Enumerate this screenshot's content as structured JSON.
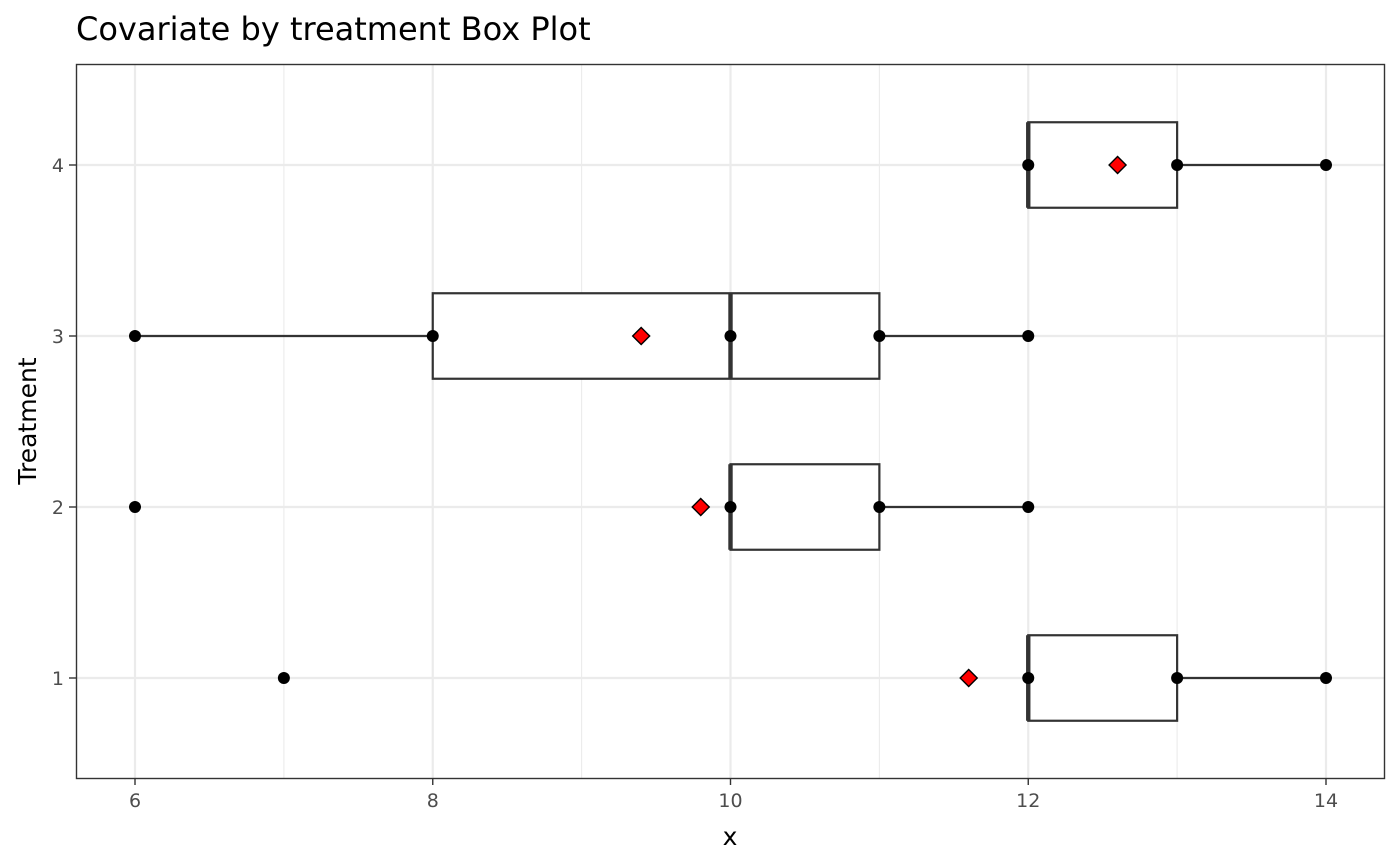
{
  "chart_data": {
    "type": "boxplot",
    "title": "Covariate by treatment Box Plot",
    "xlabel": "x",
    "ylabel": "Treatment",
    "xlim": [
      5.6,
      14.4
    ],
    "x_ticks": [
      6,
      8,
      10,
      12,
      14
    ],
    "x_minor": [
      7,
      9,
      11,
      13
    ],
    "categories": [
      "1",
      "2",
      "3",
      "4"
    ],
    "grid": true,
    "mean_color": "#ff0000",
    "series": [
      {
        "category": "1",
        "points": [
          7,
          12,
          13,
          14
        ],
        "q1": 12,
        "median": 12,
        "q3": 13,
        "whisker_low": 12,
        "whisker_high": 14,
        "mean": 11.6
      },
      {
        "category": "2",
        "points": [
          6,
          10,
          11,
          12
        ],
        "q1": 10,
        "median": 10,
        "q3": 11,
        "whisker_low": 10,
        "whisker_high": 12,
        "mean": 9.8
      },
      {
        "category": "3",
        "points": [
          6,
          8,
          10,
          11,
          12
        ],
        "q1": 8,
        "median": 10,
        "q3": 11,
        "whisker_low": 6,
        "whisker_high": 12,
        "mean": 9.4
      },
      {
        "category": "4",
        "points": [
          12,
          13,
          14
        ],
        "q1": 12,
        "median": 12,
        "q3": 13,
        "whisker_low": 12,
        "whisker_high": 14,
        "mean": 12.6
      }
    ]
  }
}
